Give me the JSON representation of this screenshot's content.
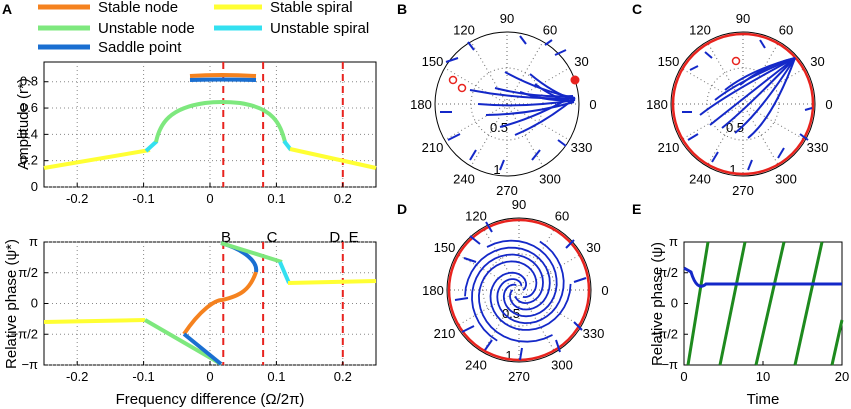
{
  "panel_labels": {
    "a": "A",
    "b": "B",
    "c": "C",
    "d": "D",
    "e": "E"
  },
  "colors": {
    "stable_node": "#f5821f",
    "unstable_node": "#7ee87e",
    "saddle": "#1a6fd1",
    "stable_spiral": "#ffff33",
    "unstable_spiral": "#33e0f0",
    "marker": "#e8231e",
    "traj_blue": "#1428c8",
    "traj_green": "#1e8a1e",
    "limit_cycle": "#e8231e"
  },
  "legend": {
    "stable_node": "Stable node",
    "unstable_node": "Unstable node",
    "saddle": "Saddle point",
    "stable_spiral": "Stable spiral",
    "unstable_spiral": "Unstable spiral"
  },
  "markers": {
    "b": "B",
    "c": "C",
    "de": "D, E"
  },
  "chart_data": [
    {
      "id": "A-top",
      "type": "line",
      "ylabel": "Amplitude (r*)",
      "xlim": [
        -0.25,
        0.25
      ],
      "ylim": [
        0,
        0.95
      ],
      "xticks": [
        -0.2,
        -0.1,
        0,
        0.1,
        0.2
      ],
      "xtick_labels": [
        "-0.2",
        "-0.1",
        "0",
        "0.1",
        "0.2"
      ],
      "yticks": [
        0,
        0.2,
        0.4,
        0.6,
        0.8
      ],
      "ytick_labels": [
        "0",
        "0.2",
        "0.4",
        "0.6",
        "0.8"
      ],
      "vlines": [
        0.02,
        0.08,
        0.2
      ],
      "grid": true
    },
    {
      "id": "A-bottom",
      "type": "line",
      "ylabel": "Relative phase (ψ*)",
      "xlabel": "Frequency difference (Ω/2π)",
      "xlim": [
        -0.25,
        0.25
      ],
      "ylim": [
        -3.1416,
        3.1416
      ],
      "xticks": [
        -0.2,
        -0.1,
        0,
        0.1,
        0.2
      ],
      "xtick_labels": [
        "-0.2",
        "-0.1",
        "0",
        "0.1",
        "0.2"
      ],
      "yticks": [
        -3.1416,
        -1.5708,
        0,
        1.5708,
        3.1416
      ],
      "ytick_labels": [
        "−π",
        "−π/2",
        "0",
        "π/2",
        "π"
      ],
      "vlines": [
        0.02,
        0.08,
        0.2
      ],
      "grid": true
    },
    {
      "id": "B",
      "type": "polar",
      "angle_labels": [
        "90",
        "60",
        "30",
        "0",
        "330",
        "300",
        "270",
        "240",
        "210",
        "180",
        "150",
        "120"
      ],
      "radius_labels": [
        "0.5",
        "1"
      ]
    },
    {
      "id": "C",
      "type": "polar",
      "angle_labels": [
        "90",
        "60",
        "30",
        "0",
        "330",
        "300",
        "270",
        "240",
        "210",
        "180",
        "150",
        "120"
      ],
      "radius_labels": [
        "0.5",
        "1"
      ]
    },
    {
      "id": "D",
      "type": "polar",
      "angle_labels": [
        "90",
        "60",
        "30",
        "0",
        "330",
        "300",
        "270",
        "240",
        "210",
        "180",
        "150",
        "120"
      ],
      "radius_labels": [
        "0.5",
        "1"
      ]
    },
    {
      "id": "E",
      "type": "line",
      "xlabel": "Time",
      "ylabel": "Relative phase (ψ)",
      "xlim": [
        0,
        20
      ],
      "ylim": [
        -3.1416,
        3.1416
      ],
      "xticks": [
        0,
        10,
        20
      ],
      "xtick_labels": [
        "0",
        "10",
        "20"
      ],
      "yticks": [
        -3.1416,
        -1.5708,
        0,
        1.5708,
        3.1416
      ],
      "ytick_labels": [
        "−π",
        "−π/2",
        "0",
        "π/2",
        "π"
      ]
    }
  ]
}
